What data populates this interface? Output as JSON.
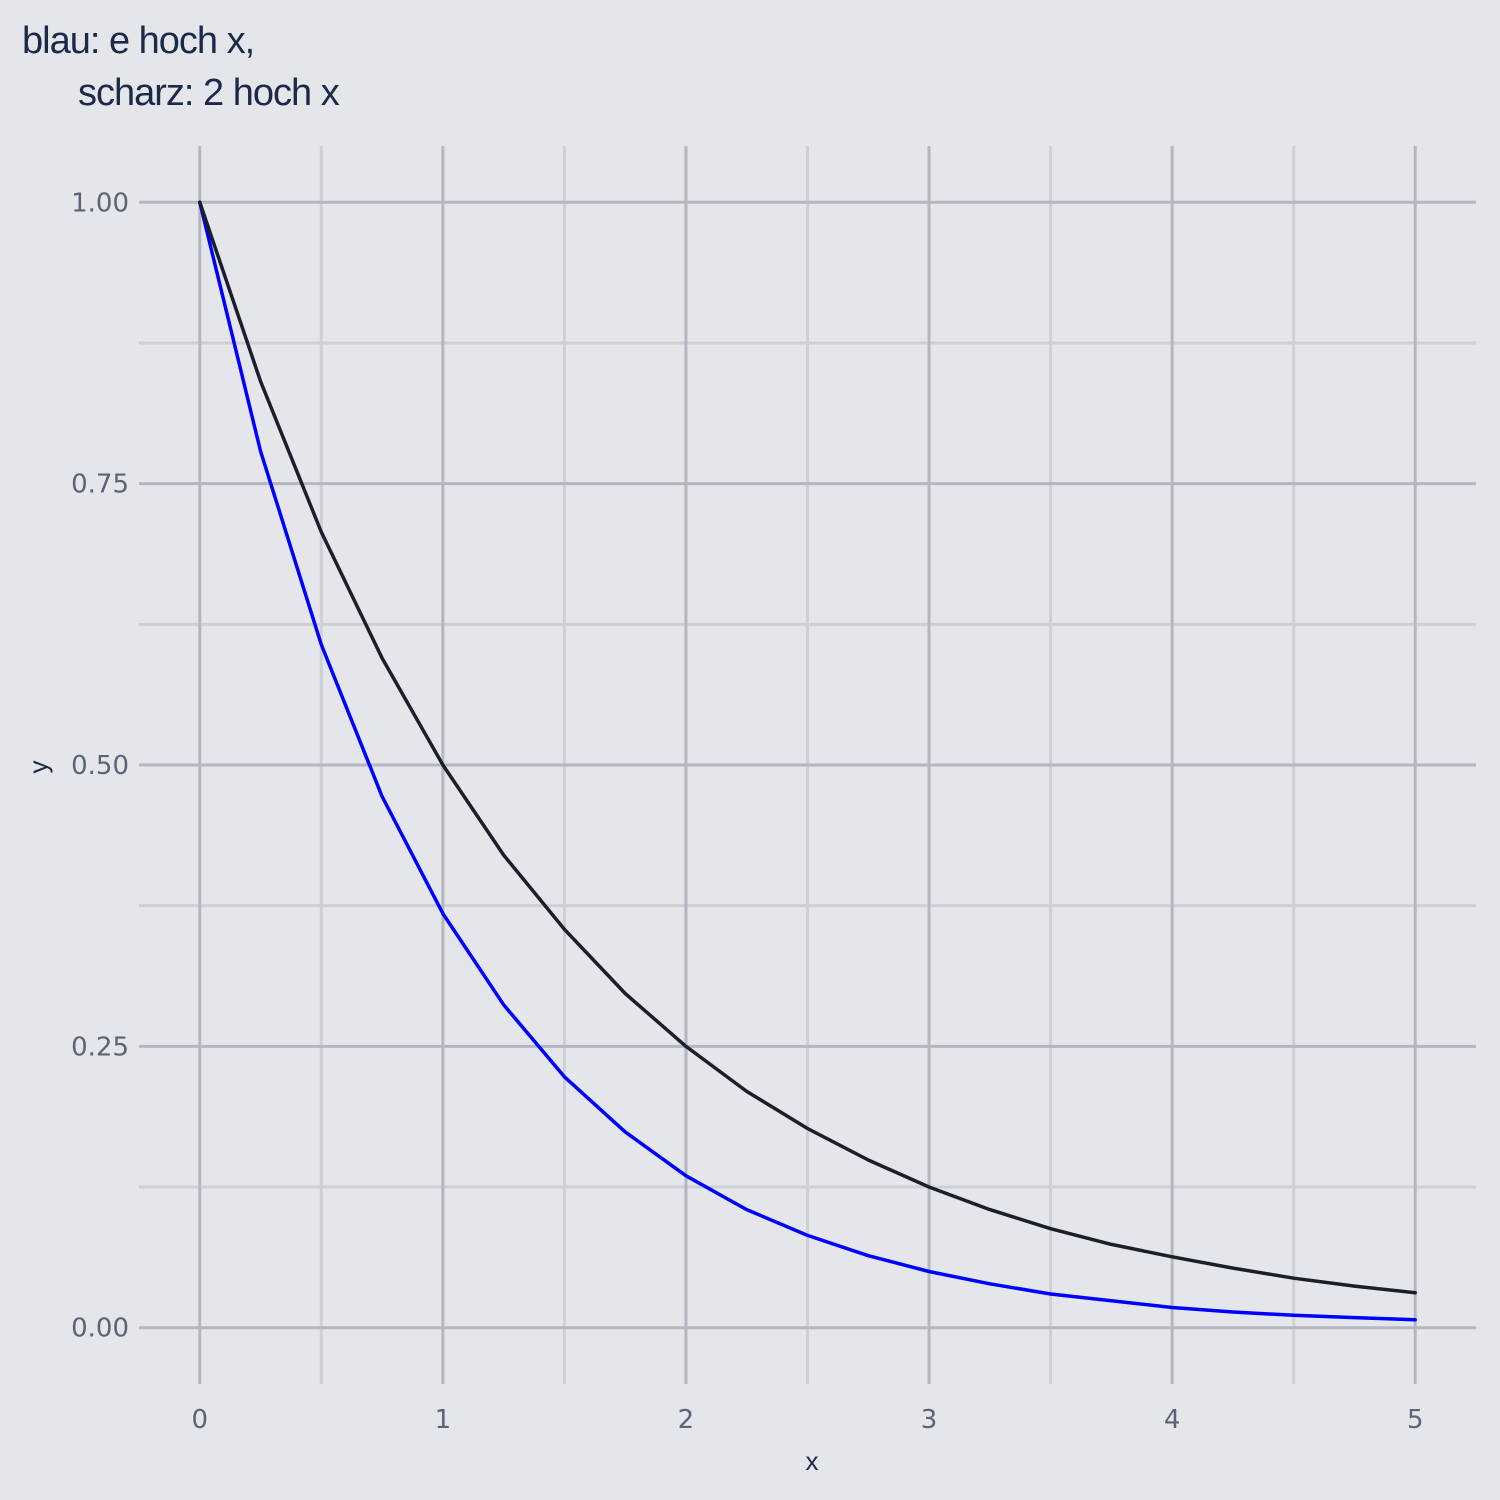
{
  "chart_data": {
    "type": "line",
    "title": "blau: e hoch x,\n      scharz: 2 hoch x",
    "title_lines": [
      "blau: e hoch x,",
      "scharz: 2 hoch x"
    ],
    "xlabel": "x",
    "ylabel": "y",
    "xlim": [
      -0.25,
      5.25
    ],
    "ylim": [
      -0.05,
      1.05
    ],
    "x_ticks": [
      0,
      1,
      2,
      3,
      4,
      5
    ],
    "x_tick_labels": [
      "0",
      "1",
      "2",
      "3",
      "4",
      "5"
    ],
    "y_ticks": [
      0,
      0.25,
      0.5,
      0.75,
      1
    ],
    "y_tick_labels": [
      "0.00",
      "0.25",
      "0.50",
      "0.75",
      "1.00"
    ],
    "grid": true,
    "legend": "none",
    "series": [
      {
        "color": "#0000FF",
        "x": [
          0,
          0.25,
          0.5,
          0.75,
          1,
          1.25,
          1.5,
          1.75,
          2,
          2.25,
          2.5,
          2.75,
          3,
          3.25,
          3.5,
          3.75,
          4,
          4.25,
          4.5,
          4.75,
          5
        ],
        "y": [
          1,
          0.779,
          0.607,
          0.472,
          0.368,
          0.287,
          0.223,
          0.174,
          0.135,
          0.105,
          0.082,
          0.064,
          0.05,
          0.039,
          0.03,
          0.024,
          0.018,
          0.014,
          0.011,
          0.009,
          0.007
        ]
      },
      {
        "color": "#1A1F2B",
        "x": [
          0,
          0.25,
          0.5,
          0.75,
          1,
          1.25,
          1.5,
          1.75,
          2,
          2.25,
          2.5,
          2.75,
          3,
          3.25,
          3.5,
          3.75,
          4,
          4.25,
          4.5,
          4.75,
          5
        ],
        "y": [
          1,
          0.841,
          0.707,
          0.595,
          0.5,
          0.42,
          0.354,
          0.297,
          0.25,
          0.21,
          0.177,
          0.149,
          0.125,
          0.105,
          0.088,
          0.074,
          0.063,
          0.053,
          0.044,
          0.037,
          0.031
        ]
      }
    ],
    "colors": {
      "background": "#E5E6EA",
      "grid_major": "#B4B7C0",
      "grid_minor": "#CDD0D6",
      "title": "#1B2A4A",
      "tick_text": "#5B6378"
    }
  }
}
